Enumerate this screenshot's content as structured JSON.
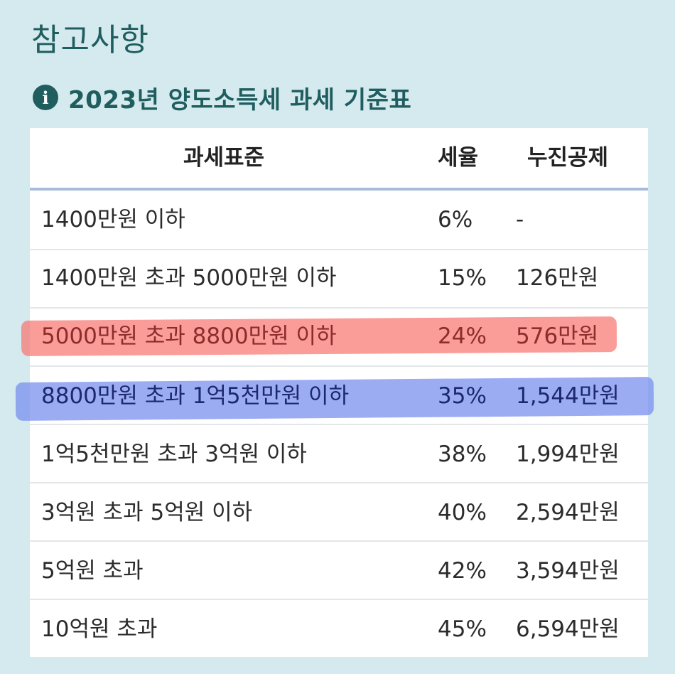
{
  "header": {
    "title": "참고사항",
    "subtitle": "2023년 양도소득세 과세 기준표",
    "info_icon": "info-icon"
  },
  "table": {
    "columns": [
      "과세표준",
      "세율",
      "누진공제"
    ],
    "rows": [
      {
        "bracket": "1400만원 이하",
        "rate": "6%",
        "deduction": "-"
      },
      {
        "bracket": "1400만원 초과 5000만원 이하",
        "rate": "15%",
        "deduction": "126만원"
      },
      {
        "bracket": "5000만원 초과 8800만원 이하",
        "rate": "24%",
        "deduction": "576만원",
        "highlight": "#f87670"
      },
      {
        "bracket": "8800만원 초과 1억5천만원 이하",
        "rate": "35%",
        "deduction": "1,544만원",
        "highlight": "#768cee"
      },
      {
        "bracket": "1억5천만원 초과 3억원 이하",
        "rate": "38%",
        "deduction": "1,994만원"
      },
      {
        "bracket": "3억원 초과 5억원 이하",
        "rate": "40%",
        "deduction": "2,594만원"
      },
      {
        "bracket": "5억원 초과",
        "rate": "42%",
        "deduction": "3,594만원"
      },
      {
        "bracket": "10억원 초과",
        "rate": "45%",
        "deduction": "6,594만원"
      }
    ]
  },
  "colors": {
    "background": "#d4eaee",
    "title": "#1f5d5f",
    "header_rule": "#a8bcd9",
    "highlight_red": "#f87670",
    "highlight_blue": "#768cee"
  }
}
